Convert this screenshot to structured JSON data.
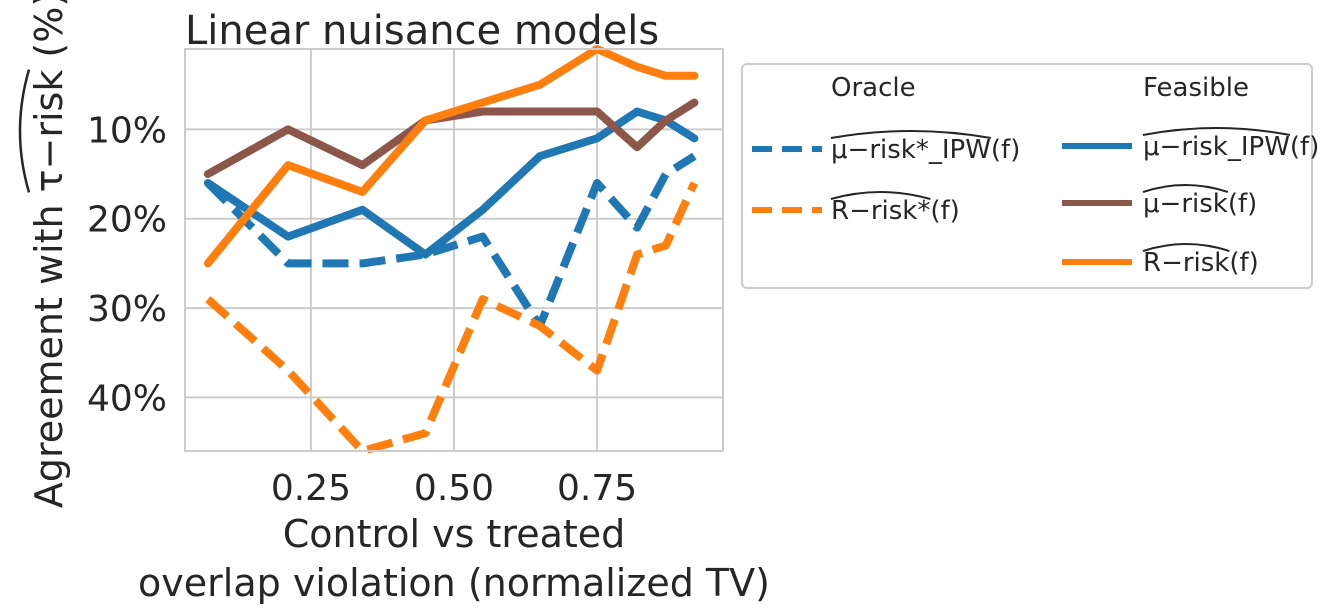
{
  "chart_data": {
    "type": "line",
    "title": "Linear nuisance models",
    "xlabel_lines": [
      "Control vs treated",
      "overlap violation (normalized TV)"
    ],
    "ylabel": "Agreement with τ−risk (%)",
    "ylabel_hat_part": "τ−risk",
    "x_ticks": [
      "0.25",
      "0.50",
      "0.75"
    ],
    "x_tick_values": [
      0.25,
      0.5,
      0.75
    ],
    "y_ticks": [
      "10%",
      "20%",
      "30%",
      "40%"
    ],
    "y_tick_values": [
      10,
      20,
      30,
      40
    ],
    "xlim": [
      0.03,
      0.97
    ],
    "ylim": [
      1,
      46
    ],
    "y_inverted": true,
    "grid": true,
    "legend_position": "outside-right",
    "legend_groups": [
      "Oracle",
      "Feasible"
    ],
    "x": [
      0.07,
      0.21,
      0.34,
      0.45,
      0.55,
      0.65,
      0.75,
      0.82,
      0.87,
      0.92
    ],
    "series": [
      {
        "name": "μ−risk*_IPW(f)",
        "group": "Oracle",
        "color": "#1f77b4",
        "dashed": true,
        "values": [
          16,
          25,
          25,
          24,
          22,
          32,
          16,
          21,
          15,
          13
        ]
      },
      {
        "name": "R−risk*(f)",
        "group": "Oracle",
        "color": "#ff7f0e",
        "dashed": true,
        "values": [
          29,
          37,
          46,
          44,
          29,
          32,
          37,
          24,
          23,
          16
        ]
      },
      {
        "name": "μ−risk_IPW(f)",
        "group": "Feasible",
        "color": "#1f77b4",
        "dashed": false,
        "values": [
          16,
          22,
          19,
          24,
          19,
          13,
          11,
          8,
          9,
          11
        ]
      },
      {
        "name": "μ−risk(f)",
        "group": "Feasible",
        "color": "#8c564b",
        "dashed": false,
        "values": [
          15,
          10,
          14,
          9,
          8,
          8,
          8,
          12,
          9,
          7
        ]
      },
      {
        "name": "R−risk(f)",
        "group": "Feasible",
        "color": "#ff7f0e",
        "dashed": false,
        "values": [
          25,
          14,
          17,
          9,
          7,
          5,
          1,
          3,
          4,
          4
        ]
      }
    ]
  }
}
